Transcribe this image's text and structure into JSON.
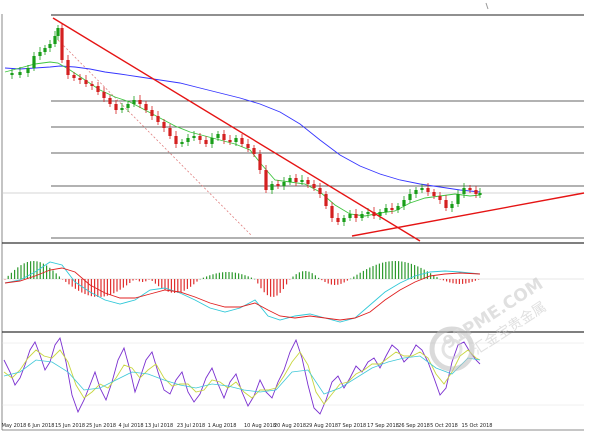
{
  "x_axis_labels": [
    "May 2018",
    "6 Jun 2018",
    "15 Jun 2018",
    "25 Jun 2018",
    "4 Jul 2018",
    "13 Jul 2018",
    "23 Jul 2018",
    "1 Aug 2018",
    "10 Aug 2018",
    "20 Aug 2018",
    "29 Aug 2018",
    "7 Sep 2018",
    "17 Sep 2018",
    "26 Sep 2018",
    "5 Oct 2018",
    "15 Oct 2018"
  ],
  "watermark": {
    "brand": "91PME.COM",
    "tagline": "汇金宝贵金属"
  },
  "panes": [
    "price",
    "macd",
    "stochastic"
  ],
  "colors": {
    "bull_candle": "#1a9e1a",
    "bear_candle": "#d42020",
    "trendline": "#e51414",
    "ma_slow": "#3535ff",
    "ma_fast": "#3fc43f",
    "hist_up": "#2e9a2e",
    "hist_down": "#e03030",
    "signal_cyan": "#30c8d8",
    "signal_red": "#e02020",
    "stoch_k": "#7a2fd0",
    "stoch_d": "#c8d640",
    "stoch_third": "#40c8d8"
  }
}
